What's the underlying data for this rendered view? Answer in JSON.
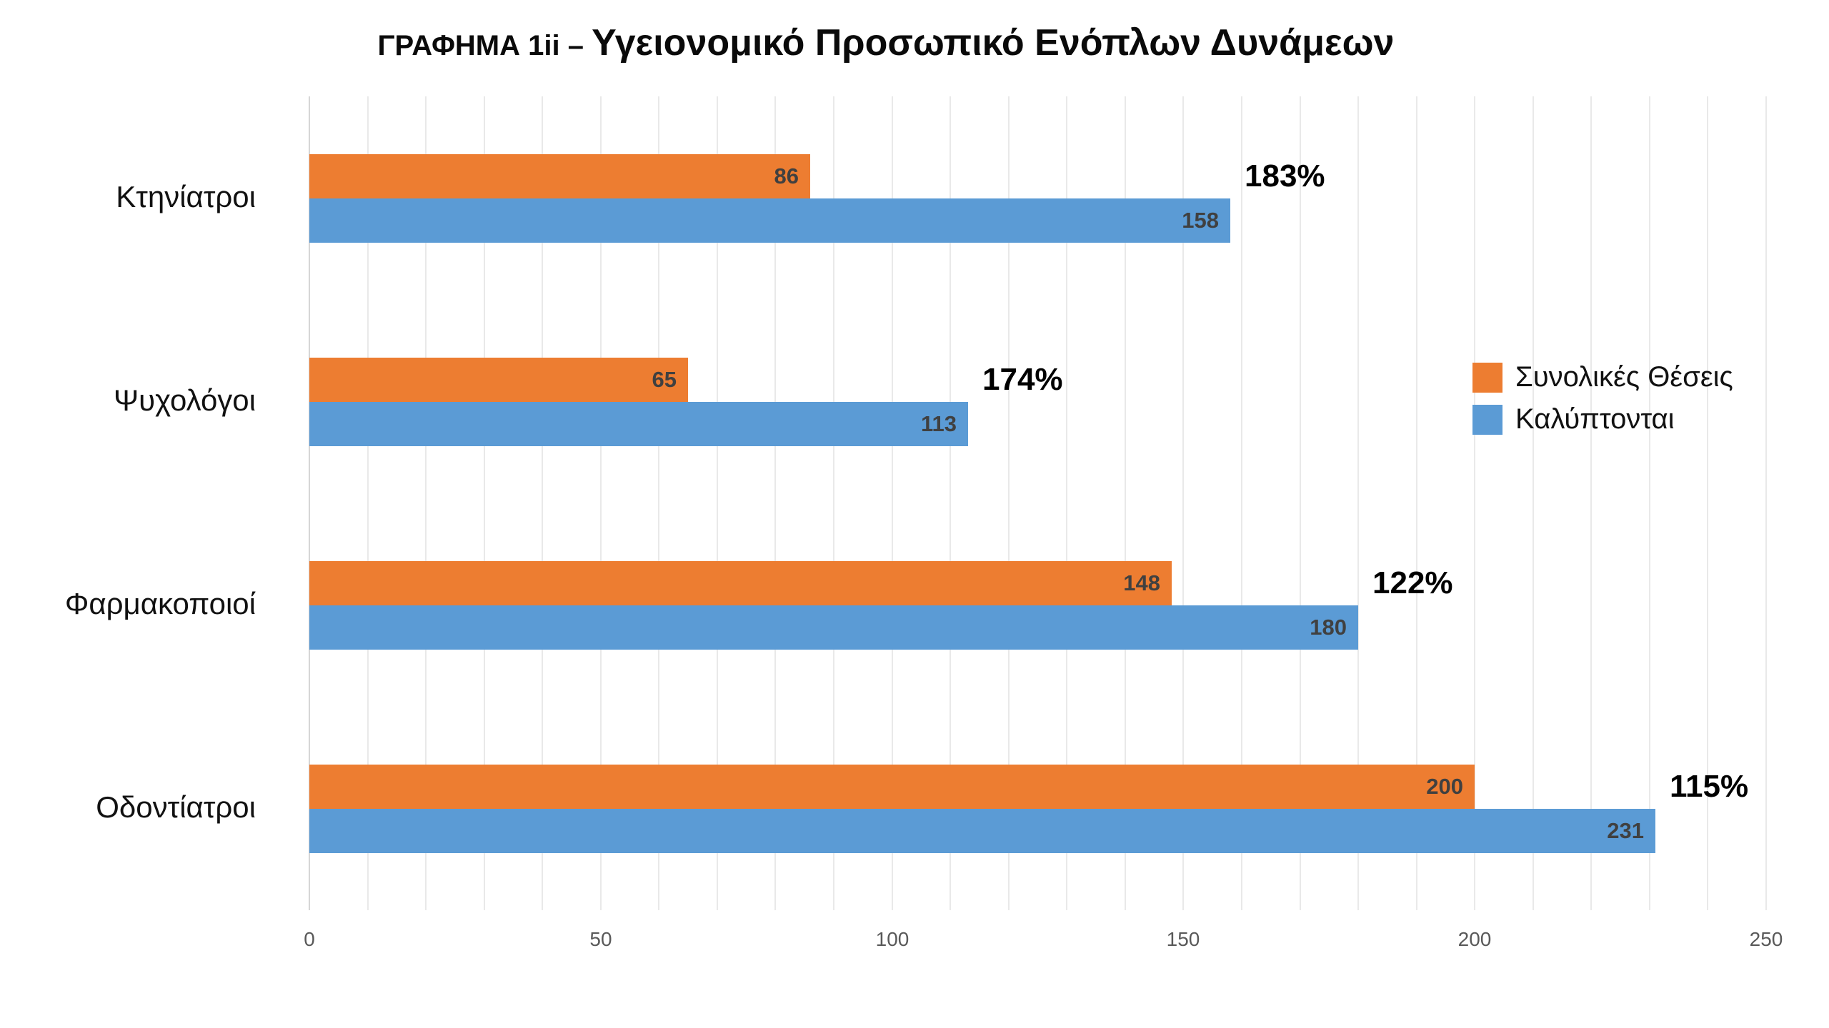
{
  "title": {
    "prefix": "ΓΡΑΦΗΜΑ 1ii – ",
    "main": "Υγειονομικό Προσωπικό Ενόπλων Δυνάμεων"
  },
  "legend": {
    "position": "right",
    "items": [
      {
        "label": "Συνολικές Θέσεις",
        "color": "#ED7D31"
      },
      {
        "label": "Καλύπτονται",
        "color": "#5B9BD5"
      }
    ]
  },
  "colors": {
    "series_total": "#ED7D31",
    "series_covered": "#5B9BD5",
    "value_label": "#404040",
    "percent_label": "#000000",
    "axis_tick": "#595959",
    "gridline": "#E9E9E9",
    "background": "#FFFFFF"
  },
  "chart_data": {
    "type": "bar",
    "orientation": "horizontal",
    "title": "ΓΡΑΦΗΜΑ 1ii – Υγειονομικό Προσωπικό Ενόπλων Δυνάμεων",
    "categories": [
      "Κτηνίατροι",
      "Ψυχολόγοι",
      "Φαρμακοποιοί",
      "Οδοντίατροι"
    ],
    "series": [
      {
        "name": "Συνολικές Θέσεις",
        "color": "#ED7D31",
        "values": [
          86,
          65,
          148,
          200
        ]
      },
      {
        "name": "Καλύπτονται",
        "color": "#5B9BD5",
        "values": [
          158,
          113,
          180,
          231
        ]
      }
    ],
    "annotations": [
      "183%",
      "174%",
      "122%",
      "115%"
    ],
    "xlim": [
      0,
      250
    ],
    "x_ticks": [
      0,
      50,
      100,
      150,
      200,
      250
    ],
    "minor_grid_step": 10,
    "grid": true,
    "legend_position": "right",
    "xlabel": "",
    "ylabel": ""
  }
}
